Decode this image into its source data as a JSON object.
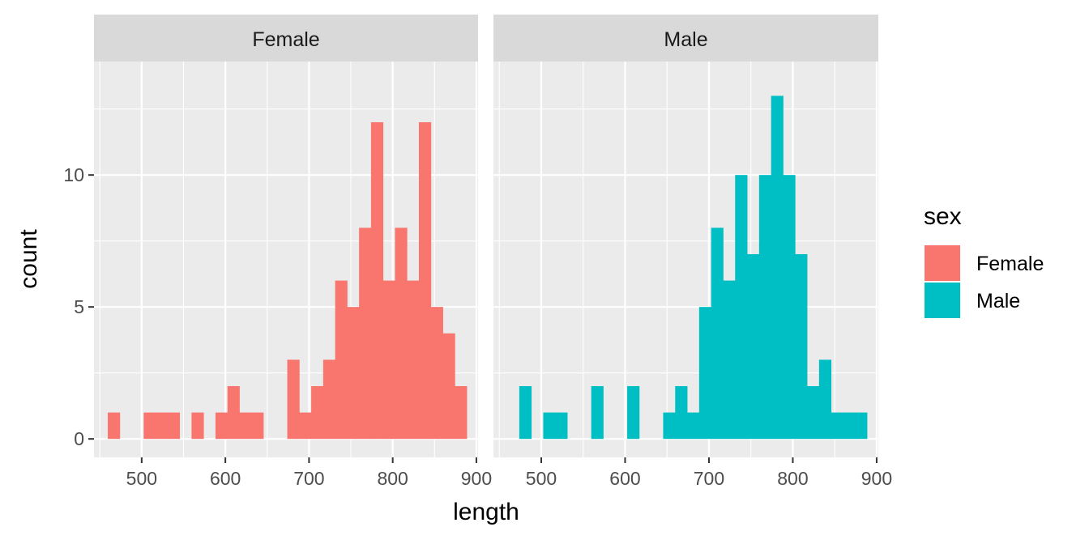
{
  "chart_data": {
    "type": "bar",
    "xlabel": "length",
    "ylabel": "count",
    "xlim": [
      443,
      902
    ],
    "ylim": [
      -0.7,
      14.3
    ],
    "x_ticks": [
      500,
      600,
      700,
      800,
      900
    ],
    "y_ticks": [
      0,
      5,
      10
    ],
    "grid": true,
    "legend_position": "right",
    "legend": {
      "title": "sex",
      "entries": [
        {
          "label": "Female",
          "color": "#F8766D"
        },
        {
          "label": "Male",
          "color": "#00BFC4"
        }
      ]
    },
    "bin_width": 14.3,
    "bin_start": 459.5,
    "panels": [
      {
        "strip": "Female",
        "color": "#F8766D",
        "counts": [
          1,
          0,
          0,
          1,
          1,
          1,
          0,
          1,
          0,
          1,
          2,
          1,
          1,
          0,
          0,
          3,
          1,
          2,
          3,
          6,
          5,
          8,
          12,
          6,
          8,
          6,
          12,
          5,
          4,
          2
        ]
      },
      {
        "strip": "Male",
        "color": "#00BFC4",
        "counts": [
          0,
          2,
          0,
          1,
          1,
          0,
          0,
          2,
          0,
          0,
          2,
          0,
          0,
          1,
          2,
          1,
          5,
          8,
          6,
          10,
          7,
          10,
          13,
          10,
          7,
          2,
          3,
          1,
          1,
          1
        ]
      }
    ]
  }
}
